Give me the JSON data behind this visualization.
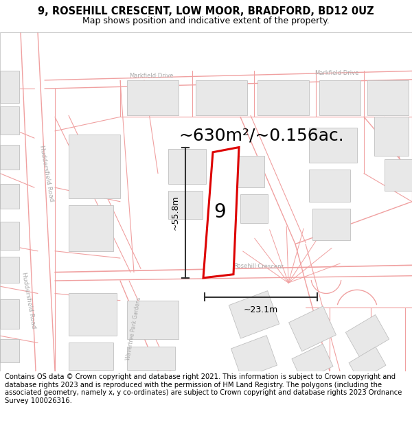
{
  "title": "9, ROSEHILL CRESCENT, LOW MOOR, BRADFORD, BD12 0UZ",
  "subtitle": "Map shows position and indicative extent of the property.",
  "footer": "Contains OS data © Crown copyright and database right 2021. This information is subject to Crown copyright and database rights 2023 and is reproduced with the permission of HM Land Registry. The polygons (including the associated geometry, namely x, y co-ordinates) are subject to Crown copyright and database rights 2023 Ordnance Survey 100026316.",
  "bg_color": "#ffffff",
  "road_color": "#f0a0a0",
  "road_lw": 0.8,
  "building_fill": "#e8e8e8",
  "building_edge": "#c0c0c0",
  "highlight_color": "#dd0000",
  "dim_color": "#333333",
  "road_label_color": "#aaaaaa",
  "area_text": "~630m²/~0.156ac.",
  "label_9": "9",
  "dim_height": "~55.8m",
  "dim_width": "~23.1m",
  "title_fontsize": 10.5,
  "subtitle_fontsize": 9,
  "footer_fontsize": 7.2,
  "area_fontsize": 18,
  "label_fontsize": 20,
  "dim_fontsize": 9,
  "road_label_fontsize": 6
}
